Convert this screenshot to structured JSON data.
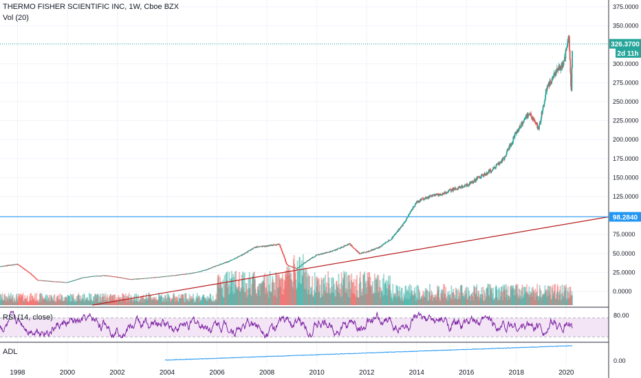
{
  "header": {
    "symbol_line": "THERMO FISHER SCIENTIFIC INC, 1W, Cboe BZX",
    "volume_label": "Vol (20)"
  },
  "price_badges": {
    "last_price": "326.3700",
    "countdown": "2d 11h",
    "line_price": "98.2840"
  },
  "rsi_pane": {
    "label": "RSI (14, close)",
    "upper_tick": "80.00"
  },
  "adl_pane": {
    "label": "ADL",
    "tick": "0.00"
  },
  "colors": {
    "up": "#26a69a",
    "down": "#ef5350",
    "rsi_line": "#7b1fa2",
    "rsi_band": "#f3e5f5",
    "adl_line": "#2196f3",
    "trendline": "#b71c1c",
    "hline": "#2196f3",
    "last_price_line": "#26a69a"
  },
  "chart_data": {
    "type": "candlestick",
    "y_axis_ticks": [
      "375.0000",
      "350.0000",
      "325.0000",
      "300.0000",
      "275.0000",
      "250.0000",
      "225.0000",
      "200.0000",
      "175.0000",
      "150.0000",
      "125.0000",
      "100.0000",
      "75.0000",
      "50.0000",
      "25.0000",
      "0.0000"
    ],
    "x_axis_ticks": [
      "1998",
      "2000",
      "2002",
      "2004",
      "2006",
      "2008",
      "2010",
      "2012",
      "2014",
      "2016",
      "2018",
      "2020"
    ],
    "price_path": [
      [
        1997.3,
        33
      ],
      [
        1998.0,
        36
      ],
      [
        1998.5,
        24
      ],
      [
        1998.8,
        15
      ],
      [
        1999.5,
        13
      ],
      [
        2000.0,
        12
      ],
      [
        2000.6,
        18
      ],
      [
        2001.0,
        20
      ],
      [
        2001.5,
        21
      ],
      [
        2002.0,
        19
      ],
      [
        2002.5,
        16
      ],
      [
        2003.0,
        17
      ],
      [
        2004.0,
        20
      ],
      [
        2004.5,
        22
      ],
      [
        2005.0,
        24
      ],
      [
        2005.5,
        28
      ],
      [
        2006.0,
        34
      ],
      [
        2006.5,
        40
      ],
      [
        2007.0,
        48
      ],
      [
        2007.5,
        58
      ],
      [
        2008.0,
        60
      ],
      [
        2008.5,
        62
      ],
      [
        2008.8,
        35
      ],
      [
        2009.2,
        30
      ],
      [
        2009.6,
        40
      ],
      [
        2010.0,
        48
      ],
      [
        2010.5,
        52
      ],
      [
        2011.0,
        58
      ],
      [
        2011.3,
        63
      ],
      [
        2011.7,
        50
      ],
      [
        2012.0,
        52
      ],
      [
        2012.5,
        58
      ],
      [
        2013.0,
        70
      ],
      [
        2013.5,
        90
      ],
      [
        2014.0,
        118
      ],
      [
        2014.5,
        125
      ],
      [
        2015.0,
        128
      ],
      [
        2015.5,
        135
      ],
      [
        2016.0,
        140
      ],
      [
        2016.5,
        150
      ],
      [
        2017.0,
        160
      ],
      [
        2017.5,
        175
      ],
      [
        2018.0,
        210
      ],
      [
        2018.5,
        235
      ],
      [
        2018.9,
        215
      ],
      [
        2019.2,
        265
      ],
      [
        2019.6,
        290
      ],
      [
        2019.9,
        300
      ],
      [
        2020.1,
        340
      ],
      [
        2020.2,
        260
      ],
      [
        2020.25,
        326.37
      ]
    ],
    "last_price": 326.37,
    "horizontal_line_price": 98.284,
    "trendline": [
      [
        2001.0,
        0
      ],
      [
        2021.7,
        98.3
      ]
    ],
    "ylim": [
      -20,
      388
    ],
    "xlim": [
      1997.3,
      2021.7
    ],
    "rsi": {
      "levels": [
        30,
        70
      ],
      "range": [
        20,
        90
      ]
    },
    "adl_start_year": 2003.9
  }
}
